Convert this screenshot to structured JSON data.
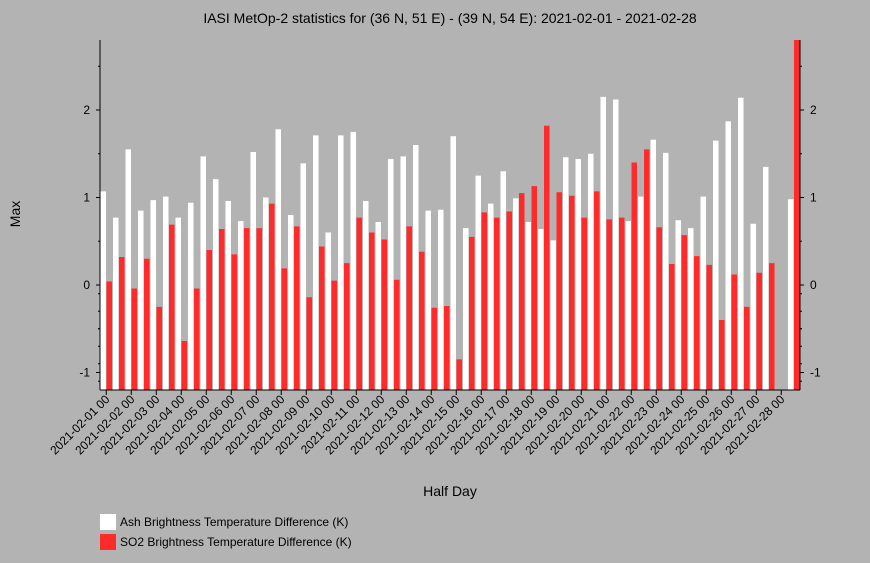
{
  "chart_data": {
    "type": "bar",
    "title": "IASI MetOp-2 statistics for (36 N, 51 E) - (39 N, 54 E): 2021-02-01 - 2021-02-28",
    "xlabel": "Half Day",
    "ylabel": "Max",
    "ylim": [
      -1.2,
      2.8
    ],
    "yticks": [
      -1,
      0,
      1,
      2
    ],
    "grid": false,
    "legend_position": "bottom-left",
    "date_labels": [
      "2021-02-01 00",
      "2021-02-02 00",
      "2021-02-03 00",
      "2021-02-04 00",
      "2021-02-05 00",
      "2021-02-06 00",
      "2021-02-07 00",
      "2021-02-08 00",
      "2021-02-09 00",
      "2021-02-10 00",
      "2021-02-11 00",
      "2021-02-12 00",
      "2021-02-13 00",
      "2021-02-14 00",
      "2021-02-15 00",
      "2021-02-16 00",
      "2021-02-17 00",
      "2021-02-18 00",
      "2021-02-19 00",
      "2021-02-20 00",
      "2021-02-21 00",
      "2021-02-22 00",
      "2021-02-23 00",
      "2021-02-24 00",
      "2021-02-25 00",
      "2021-02-26 00",
      "2021-02-27 00",
      "2021-02-28 00"
    ],
    "series": [
      {
        "name": "Ash Brightness Temperature Difference (K)",
        "color": "#ffffff",
        "values": [
          1.07,
          0.77,
          1.55,
          0.85,
          0.97,
          1.01,
          0.77,
          0.94,
          1.47,
          1.21,
          0.96,
          0.73,
          1.52,
          1.0,
          1.78,
          0.8,
          1.39,
          1.71,
          0.6,
          1.71,
          1.75,
          0.96,
          0.72,
          1.44,
          1.47,
          1.6,
          0.85,
          0.86,
          1.7,
          0.65,
          1.25,
          0.93,
          1.3,
          0.99,
          0.72,
          0.64,
          0.51,
          1.46,
          1.44,
          1.5,
          2.15,
          2.12,
          0.73,
          1.01,
          1.66,
          1.51,
          0.74,
          0.65,
          1.01,
          1.65,
          1.87,
          2.14,
          0.7,
          1.35,
          null,
          0.98
        ]
      },
      {
        "name": "SO2 Brightness Temperature Difference (K)",
        "color": "#ff2a2a",
        "values": [
          0.04,
          0.32,
          -0.04,
          0.3,
          -0.25,
          0.69,
          -0.64,
          -0.04,
          0.4,
          0.64,
          0.35,
          0.65,
          0.65,
          0.93,
          0.19,
          0.67,
          -0.14,
          0.44,
          0.05,
          0.25,
          0.77,
          0.6,
          0.52,
          0.06,
          0.67,
          0.38,
          -0.26,
          -0.24,
          -0.85,
          0.55,
          0.83,
          0.77,
          0.84,
          1.05,
          1.13,
          1.82,
          1.06,
          1.02,
          0.77,
          1.07,
          0.75,
          0.77,
          1.4,
          1.55,
          0.66,
          0.24,
          0.57,
          0.33,
          0.23,
          -0.4,
          0.12,
          -0.25,
          0.14,
          0.25,
          null,
          2.8
        ]
      }
    ]
  }
}
